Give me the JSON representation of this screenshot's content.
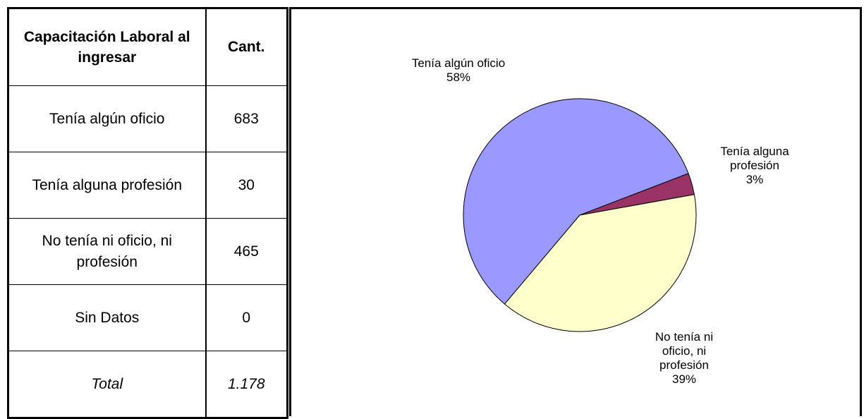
{
  "table": {
    "header": [
      "Capacitación Laboral al ingresar",
      "Cant."
    ],
    "rows": [
      [
        "Tenía algún oficio",
        "683"
      ],
      [
        "Tenía alguna profesión",
        "30"
      ],
      [
        "No tenía ni oficio, ni profesión",
        "465"
      ],
      [
        "Sin Datos",
        "0"
      ]
    ],
    "total": [
      "Total",
      "1.178"
    ]
  },
  "chart_data": {
    "type": "pie",
    "categories": [
      "Tenía algún oficio",
      "Tenía alguna profesión",
      "No tenía ni oficio, ni profesión"
    ],
    "values": [
      58,
      3,
      39
    ],
    "value_labels": [
      "58%",
      "3%",
      "39%"
    ],
    "colors": [
      "#9999ff",
      "#993366",
      "#ffffcc"
    ]
  }
}
